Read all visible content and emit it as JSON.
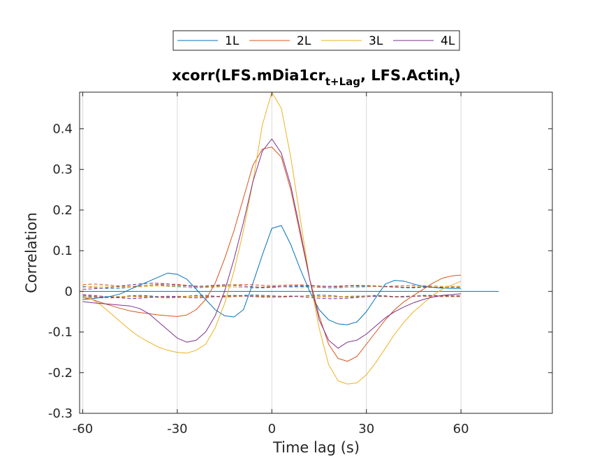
{
  "chart_data": {
    "type": "line",
    "title": {
      "main": "xcorr(LFS.mDia1cr",
      "sub1": "t+Lag",
      "mid": ", LFS.Actin",
      "sub2": "t",
      "end": ")"
    },
    "xlabel": "Time lag (s)",
    "ylabel": "Correlation",
    "xlim": [
      -61,
      89
    ],
    "ylim": [
      -0.3,
      0.49
    ],
    "xticks": [
      -60,
      -30,
      0,
      30,
      60
    ],
    "xtick_labels": [
      "-60",
      "-30",
      "0",
      "30",
      "60"
    ],
    "yticks": [
      -0.3,
      -0.2,
      -0.1,
      0,
      0.1,
      0.2,
      0.3,
      0.4
    ],
    "ytick_labels": [
      "-0.3",
      "-0.2",
      "-0.1",
      "0",
      "0.1",
      "0.2",
      "0.3",
      "0.4"
    ],
    "grid": "x",
    "legend": {
      "placement": "top-outside",
      "orientation": "horizontal",
      "entries": [
        "1L",
        "2L",
        "3L",
        "4L"
      ]
    },
    "x": [
      -60,
      -57,
      -54,
      -51,
      -48,
      -45,
      -42,
      -39,
      -36,
      -33,
      -30,
      -27,
      -24,
      -21,
      -18,
      -15,
      -12,
      -9,
      -6,
      -3,
      0,
      3,
      6,
      9,
      12,
      15,
      18,
      21,
      24,
      27,
      30,
      33,
      36,
      39,
      42,
      45,
      48,
      51,
      54,
      57,
      60
    ],
    "series": [
      {
        "name": "1L",
        "color": "#0072BD",
        "values": [
          -0.02,
          -0.018,
          -0.015,
          -0.012,
          -0.006,
          0.005,
          0.015,
          0.025,
          0.035,
          0.045,
          0.042,
          0.03,
          0.005,
          -0.02,
          -0.045,
          -0.06,
          -0.063,
          -0.045,
          0.02,
          0.09,
          0.155,
          0.162,
          0.115,
          0.055,
          0.0,
          -0.045,
          -0.07,
          -0.08,
          -0.082,
          -0.075,
          -0.05,
          -0.015,
          0.018,
          0.027,
          0.025,
          0.018,
          0.012,
          0.01,
          0.008,
          0.007,
          0.007
        ]
      },
      {
        "name": "2L",
        "color": "#D95319",
        "values": [
          -0.015,
          -0.02,
          -0.028,
          -0.035,
          -0.042,
          -0.048,
          -0.052,
          -0.055,
          -0.058,
          -0.06,
          -0.062,
          -0.058,
          -0.045,
          -0.02,
          0.02,
          0.08,
          0.15,
          0.23,
          0.31,
          0.35,
          0.355,
          0.33,
          0.25,
          0.14,
          0.03,
          -0.06,
          -0.13,
          -0.165,
          -0.172,
          -0.16,
          -0.13,
          -0.1,
          -0.07,
          -0.045,
          -0.025,
          -0.01,
          0.005,
          0.02,
          0.032,
          0.038,
          0.04
        ]
      },
      {
        "name": "3L",
        "color": "#EDB120",
        "values": [
          -0.01,
          -0.02,
          -0.035,
          -0.055,
          -0.075,
          -0.095,
          -0.112,
          -0.125,
          -0.137,
          -0.145,
          -0.15,
          -0.152,
          -0.145,
          -0.13,
          -0.09,
          -0.03,
          0.05,
          0.15,
          0.27,
          0.41,
          0.49,
          0.45,
          0.33,
          0.18,
          0.03,
          -0.09,
          -0.18,
          -0.22,
          -0.228,
          -0.225,
          -0.205,
          -0.175,
          -0.14,
          -0.105,
          -0.075,
          -0.05,
          -0.03,
          -0.01,
          0.005,
          0.015,
          0.025
        ]
      },
      {
        "name": "4L",
        "color": "#7E2F8E",
        "values": [
          -0.025,
          -0.028,
          -0.03,
          -0.032,
          -0.034,
          -0.036,
          -0.042,
          -0.055,
          -0.075,
          -0.095,
          -0.115,
          -0.125,
          -0.12,
          -0.1,
          -0.06,
          0.0,
          0.08,
          0.17,
          0.27,
          0.345,
          0.375,
          0.34,
          0.26,
          0.15,
          0.03,
          -0.07,
          -0.12,
          -0.14,
          -0.125,
          -0.12,
          -0.105,
          -0.085,
          -0.065,
          -0.05,
          -0.038,
          -0.028,
          -0.02,
          -0.014,
          -0.01,
          -0.008,
          -0.006
        ]
      }
    ],
    "dashed_series": [
      {
        "color": "#0072BD",
        "values": [
          0.012,
          0.01,
          0.008,
          0.007,
          0.008,
          0.01,
          0.013,
          0.015,
          0.016,
          0.014,
          0.012,
          0.01,
          0.009,
          0.01,
          0.011,
          0.012,
          0.011,
          0.01,
          0.009,
          0.009,
          0.01,
          0.011,
          0.012,
          0.012,
          0.011,
          0.01,
          0.009,
          0.009,
          0.01,
          0.011,
          0.012,
          0.012,
          0.011,
          0.01,
          0.009,
          0.009,
          0.01,
          0.01,
          0.01,
          0.01,
          0.01
        ]
      },
      {
        "color": "#0072BD",
        "values": [
          -0.012,
          -0.014,
          -0.016,
          -0.015,
          -0.013,
          -0.011,
          -0.01,
          -0.011,
          -0.013,
          -0.015,
          -0.014,
          -0.012,
          -0.01,
          -0.01,
          -0.012,
          -0.013,
          -0.012,
          -0.01,
          -0.009,
          -0.01,
          -0.011,
          -0.012,
          -0.013,
          -0.012,
          -0.01,
          -0.009,
          -0.01,
          -0.012,
          -0.014,
          -0.013,
          -0.011,
          -0.01,
          -0.011,
          -0.013,
          -0.014,
          -0.012,
          -0.01,
          -0.01,
          -0.011,
          -0.012,
          -0.012
        ]
      },
      {
        "color": "#D95319",
        "values": [
          0.016,
          0.018,
          0.017,
          0.015,
          0.013,
          0.012,
          0.013,
          0.015,
          0.017,
          0.018,
          0.017,
          0.015,
          0.013,
          0.012,
          0.013,
          0.015,
          0.016,
          0.017,
          0.016,
          0.015,
          0.014,
          0.015,
          0.016,
          0.016,
          0.015,
          0.013,
          0.012,
          0.013,
          0.014,
          0.015,
          0.014,
          0.013,
          0.012,
          0.013,
          0.014,
          0.015,
          0.014,
          0.013,
          0.012,
          0.012,
          0.012
        ]
      },
      {
        "color": "#D95319",
        "values": [
          -0.01,
          -0.012,
          -0.014,
          -0.016,
          -0.015,
          -0.013,
          -0.012,
          -0.013,
          -0.015,
          -0.016,
          -0.015,
          -0.013,
          -0.012,
          -0.012,
          -0.013,
          -0.014,
          -0.013,
          -0.012,
          -0.011,
          -0.012,
          -0.013,
          -0.014,
          -0.013,
          -0.012,
          -0.011,
          -0.012,
          -0.013,
          -0.014,
          -0.013,
          -0.012,
          -0.011,
          -0.012,
          -0.013,
          -0.014,
          -0.013,
          -0.012,
          -0.012,
          -0.013,
          -0.013,
          -0.013,
          -0.013
        ]
      },
      {
        "color": "#EDB120",
        "values": [
          0.01,
          0.012,
          0.013,
          0.012,
          0.011,
          0.01,
          0.011,
          0.012,
          0.013,
          0.012,
          0.011,
          0.01,
          0.01,
          0.011,
          0.012,
          0.012,
          0.011,
          0.01,
          0.01,
          0.011,
          0.012,
          0.011,
          0.01,
          0.009,
          0.01,
          0.011,
          0.012,
          0.011,
          0.01,
          0.01,
          0.011,
          0.012,
          0.011,
          0.01,
          0.01,
          0.011,
          0.012,
          0.012,
          0.012,
          0.012,
          0.012
        ]
      },
      {
        "color": "#EDB120",
        "values": [
          -0.015,
          -0.016,
          -0.015,
          -0.013,
          -0.012,
          -0.013,
          -0.014,
          -0.015,
          -0.014,
          -0.013,
          -0.012,
          -0.012,
          -0.013,
          -0.014,
          -0.013,
          -0.012,
          -0.011,
          -0.011,
          -0.012,
          -0.013,
          -0.013,
          -0.012,
          -0.011,
          -0.011,
          -0.012,
          -0.013,
          -0.014,
          -0.013,
          -0.012,
          -0.011,
          -0.011,
          -0.012,
          -0.013,
          -0.013,
          -0.012,
          -0.011,
          -0.011,
          -0.011,
          -0.011,
          -0.011,
          -0.011
        ]
      },
      {
        "color": "#7E2F8E",
        "values": [
          0.005,
          0.006,
          0.008,
          0.01,
          0.013,
          0.016,
          0.018,
          0.02,
          0.02,
          0.018,
          0.015,
          0.013,
          0.012,
          0.013,
          0.015,
          0.016,
          0.015,
          0.013,
          0.011,
          0.01,
          0.011,
          0.012,
          0.013,
          0.014,
          0.014,
          0.013,
          0.012,
          0.012,
          0.013,
          0.014,
          0.014,
          0.013,
          0.012,
          0.011,
          0.01,
          0.01,
          0.01,
          0.01,
          0.01,
          0.01,
          0.01
        ]
      },
      {
        "color": "#7E2F8E",
        "values": [
          -0.008,
          -0.01,
          -0.012,
          -0.014,
          -0.016,
          -0.018,
          -0.017,
          -0.015,
          -0.013,
          -0.012,
          -0.013,
          -0.015,
          -0.016,
          -0.015,
          -0.013,
          -0.011,
          -0.01,
          -0.011,
          -0.013,
          -0.014,
          -0.014,
          -0.013,
          -0.012,
          -0.013,
          -0.015,
          -0.017,
          -0.018,
          -0.018,
          -0.017,
          -0.015,
          -0.013,
          -0.012,
          -0.012,
          -0.013,
          -0.013,
          -0.012,
          -0.011,
          -0.011,
          -0.011,
          -0.011,
          -0.011
        ]
      }
    ],
    "reference_line": {
      "y": 0,
      "x_range": [
        -60,
        72
      ],
      "color": "#0072BD"
    },
    "colors": {
      "axis": "#262626",
      "grid": "#d9d9d9",
      "background": "#ffffff"
    }
  }
}
